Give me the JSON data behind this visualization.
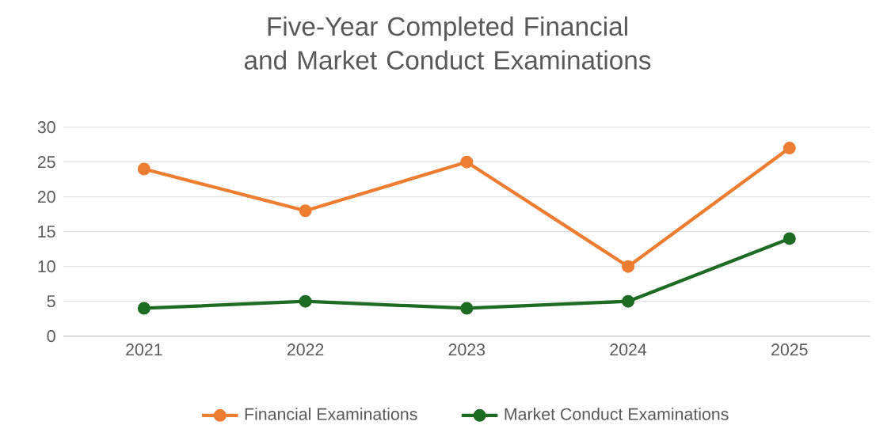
{
  "chart_data": {
    "type": "line",
    "title": "Five-Year Completed Financial and Market Conduct Examinations",
    "categories": [
      "2021",
      "2022",
      "2023",
      "2024",
      "2025"
    ],
    "series": [
      {
        "name": "Financial Examinations",
        "color": "#ed7d31",
        "values": [
          24,
          18,
          25,
          10,
          27
        ]
      },
      {
        "name": "Market Conduct Examinations",
        "color": "#1e6b24",
        "values": [
          4,
          5,
          4,
          5,
          14
        ]
      }
    ],
    "ylim": [
      0,
      30
    ],
    "yticks": [
      0,
      5,
      10,
      15,
      20,
      25,
      30
    ],
    "grid": "y",
    "legend": "bottom",
    "marker": "circle",
    "line_style": "solid"
  }
}
